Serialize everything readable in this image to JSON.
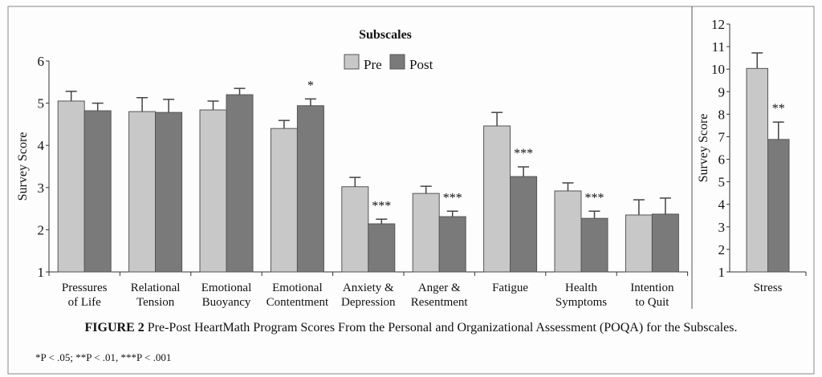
{
  "chart_data": [
    {
      "type": "bar",
      "title": "Subscales",
      "ylabel": "Survey Score",
      "xlabel": "",
      "ylim": [
        1,
        6
      ],
      "yticks": [
        "1",
        "2",
        "3",
        "4",
        "5",
        "6"
      ],
      "grid": false,
      "legend": {
        "placement": "top-center",
        "entries": [
          "Pre",
          "Post"
        ]
      },
      "categories": [
        [
          "Pressures",
          "of Life"
        ],
        [
          "Relational",
          "Tension"
        ],
        [
          "Emotional",
          "Buoyancy"
        ],
        [
          "Emotional",
          "Contentment"
        ],
        [
          "Anxiety &",
          "Depression"
        ],
        [
          "Anger &",
          "Resentment"
        ],
        [
          "Fatigue"
        ],
        [
          "Health",
          "Symptoms"
        ],
        [
          "Intention",
          "to Quit"
        ]
      ],
      "series": [
        {
          "name": "Pre",
          "color": "#c8c8c8",
          "values": [
            5.05,
            4.8,
            4.84,
            4.4,
            3.02,
            2.86,
            4.46,
            2.92,
            2.35
          ],
          "error_upper": [
            5.28,
            5.13,
            5.05,
            4.59,
            3.24,
            3.03,
            4.78,
            3.11,
            2.71
          ]
        },
        {
          "name": "Post",
          "color": "#7a7a7a",
          "values": [
            4.82,
            4.78,
            5.2,
            4.94,
            2.14,
            2.31,
            3.26,
            2.27,
            2.37
          ],
          "error_upper": [
            5.0,
            5.09,
            5.35,
            5.1,
            2.25,
            2.44,
            3.49,
            2.44,
            2.75
          ]
        }
      ],
      "annotations": [
        "",
        "",
        "",
        "*",
        "***",
        "***",
        "***",
        "***",
        ""
      ]
    },
    {
      "type": "bar",
      "ylabel": "Survey Score",
      "ylim": [
        1,
        12
      ],
      "yticks": [
        "1",
        "2",
        "3",
        "4",
        "5",
        "6",
        "7",
        "8",
        "9",
        "10",
        "11",
        "12"
      ],
      "grid": false,
      "categories": [
        [
          "Stress"
        ]
      ],
      "series": [
        {
          "name": "Pre",
          "color": "#c8c8c8",
          "values": [
            10.03
          ],
          "error_upper": [
            10.72
          ]
        },
        {
          "name": "Post",
          "color": "#7a7a7a",
          "values": [
            6.88
          ],
          "error_upper": [
            7.65
          ]
        }
      ],
      "annotations": [
        "**"
      ]
    }
  ],
  "caption": {
    "label": "FIGURE 2",
    "text": "Pre-Post HeartMath Program Scores From the Personal and Organizational Assessment (POQA) for the Subscales."
  },
  "footnote": "*P < .05; **P < .01, ***P < .001"
}
